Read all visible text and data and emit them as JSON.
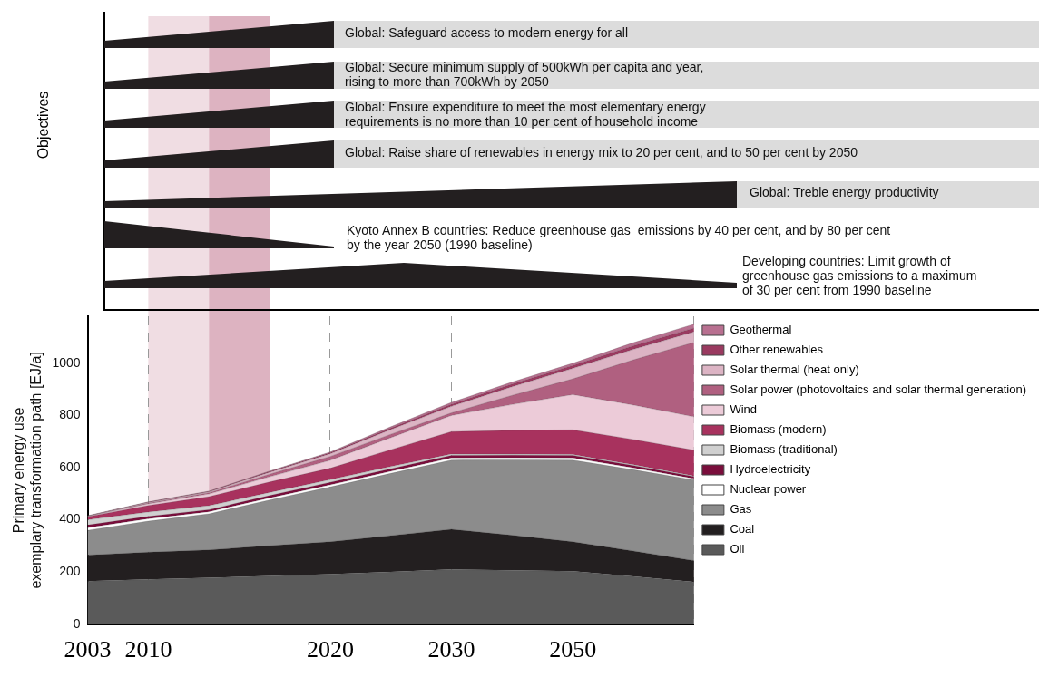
{
  "chart_data": [
    {
      "type": "other",
      "ylabel": "Objectives",
      "annotations": [
        "Global: Safeguard access to modern energy for all",
        "Global: Secure minimum supply of 500kWh per capita and year,\nrising to more than 700kWh by 2050",
        "Global: Ensure expenditure to meet the most elementary energy\nrequirements is no more than 10 per cent of household income",
        "Global: Raise share of renewables in energy mix to 20 per cent, and to 50 per cent by 2050",
        "Global: Treble energy productivity",
        "Kyoto Annex B countries: Reduce greenhouse gas  emissions by 40 per cent, and by 80 per cent\nby the year 2050 (1990 baseline)",
        "Developing countries: Limit growth of\ngreenhouse gas emissions to a maximum\nof 30 per cent from 1990 baseline"
      ]
    },
    {
      "type": "area",
      "stacked": true,
      "ylabel": "Primary energy use\nexemplary transformation path [EJ/a]",
      "categories": [
        "2003",
        "2010",
        null,
        null,
        "2020",
        null,
        "2030",
        null,
        "2050",
        null,
        null
      ],
      "ylim": [
        0,
        1180
      ],
      "yticks": [
        0,
        200,
        400,
        600,
        800,
        1000
      ],
      "grid": "x",
      "legend": "right",
      "series": [
        {
          "name": "Oil",
          "color": "#5a5a5a",
          "values": [
            165,
            172,
            178,
            185,
            192,
            201,
            210,
            207,
            203,
            183,
            162
          ]
        },
        {
          "name": "Coal",
          "color": "#231f20",
          "values": [
            100,
            104,
            107,
            116,
            124,
            139,
            154,
            134,
            113,
            98,
            82
          ]
        },
        {
          "name": "Gas",
          "color": "#8c8c8c",
          "values": [
            95,
            119,
            138,
            175,
            210,
            238,
            265,
            289,
            313,
            311,
            309
          ]
        },
        {
          "name": "Nuclear power",
          "color": "#ffffff",
          "values": [
            10,
            9,
            8,
            8,
            8,
            8,
            8,
            8,
            8,
            7,
            5
          ]
        },
        {
          "name": "Hydroelectricity",
          "color": "#7a0e3c",
          "values": [
            10,
            9,
            8,
            9,
            10,
            10,
            10,
            10,
            10,
            9,
            8
          ]
        },
        {
          "name": "Biomass (traditional)",
          "color": "#d0d0d0",
          "values": [
            20,
            17,
            15,
            12,
            10,
            8,
            5,
            4,
            3,
            3,
            2
          ]
        },
        {
          "name": "Biomass (modern)",
          "color": "#a8325e",
          "values": [
            12,
            25,
            35,
            40,
            44,
            65,
            86,
            91,
            95,
            97,
            99
          ]
        },
        {
          "name": "Wind",
          "color": "#eccbd8",
          "values": [
            1,
            6,
            10,
            20,
            30,
            46,
            62,
            99,
            135,
            132,
            128
          ]
        },
        {
          "name": "Solar power (photovoltaics and solar thermal generation)",
          "color": "#b06080",
          "values": [
            0,
            3,
            5,
            10,
            15,
            13,
            10,
            35,
            60,
            173,
            285
          ]
        },
        {
          "name": "Solar thermal (heat only)",
          "color": "#dcb4c4",
          "values": [
            1,
            2,
            3,
            7,
            10,
            18,
            25,
            33,
            40,
            40,
            40
          ]
        },
        {
          "name": "Other renewables",
          "color": "#9a3a60",
          "values": [
            1,
            2,
            2,
            3,
            4,
            6,
            8,
            10,
            12,
            14,
            15
          ]
        },
        {
          "name": "Geothermal",
          "color": "#b87090",
          "values": [
            1,
            1,
            1,
            2,
            3,
            5,
            7,
            8,
            8,
            12,
            15
          ]
        }
      ]
    }
  ]
}
